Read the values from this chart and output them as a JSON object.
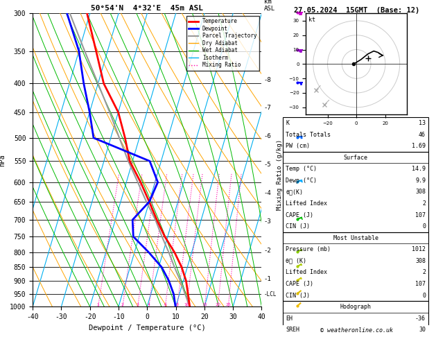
{
  "title_left": "50°54'N  4°32'E  45m ASL",
  "title_right": "27.05.2024  15GMT  (Base: 12)",
  "xlabel": "Dewpoint / Temperature (°C)",
  "pressure_levels": [
    300,
    350,
    400,
    450,
    500,
    550,
    600,
    650,
    700,
    750,
    800,
    850,
    900,
    950,
    1000
  ],
  "isotherm_color": "#00b0f0",
  "dry_adiabat_color": "#ffa500",
  "wet_adiabat_color": "#00bb00",
  "mixing_ratio_color": "#ff00aa",
  "temp_profile_color": "#ff0000",
  "dewp_profile_color": "#0000ff",
  "parcel_color": "#999999",
  "km_asl_ticks": [
    1,
    2,
    3,
    4,
    5,
    6,
    7,
    8
  ],
  "km_asl_pressures": [
    893,
    795,
    706,
    628,
    558,
    497,
    442,
    394
  ],
  "mixing_ratio_values": [
    1,
    2,
    3,
    4,
    6,
    8,
    10,
    15,
    20,
    25
  ],
  "legend_entries": [
    {
      "label": "Temperature",
      "color": "#ff0000",
      "style": "solid",
      "lw": 2
    },
    {
      "label": "Dewpoint",
      "color": "#0000ff",
      "style": "solid",
      "lw": 2
    },
    {
      "label": "Parcel Trajectory",
      "color": "#999999",
      "style": "solid",
      "lw": 1.5
    },
    {
      "label": "Dry Adiabat",
      "color": "#ffa500",
      "style": "solid",
      "lw": 1
    },
    {
      "label": "Wet Adiabat",
      "color": "#00bb00",
      "style": "solid",
      "lw": 1
    },
    {
      "label": "Isotherm",
      "color": "#00b0f0",
      "style": "solid",
      "lw": 1
    },
    {
      "label": "Mixing Ratio",
      "color": "#ff00aa",
      "style": "dotted",
      "lw": 1
    }
  ],
  "copyright": "© weatheronline.co.uk",
  "temp_data": {
    "pressure": [
      1000,
      950,
      900,
      850,
      800,
      750,
      700,
      650,
      600,
      550,
      500,
      450,
      400,
      350,
      300
    ],
    "temperature": [
      14.9,
      13.0,
      11.0,
      8.0,
      4.0,
      -1.0,
      -5.5,
      -10.0,
      -15.0,
      -21.0,
      -25.0,
      -30.0,
      -38.0,
      -44.0,
      -51.0
    ]
  },
  "dewp_data": {
    "pressure": [
      1000,
      950,
      900,
      850,
      800,
      750,
      700,
      650,
      600,
      550,
      500,
      450,
      400,
      350,
      300
    ],
    "dewpoint": [
      9.9,
      8.0,
      5.0,
      1.0,
      -5.0,
      -12.0,
      -14.0,
      -10.0,
      -9.0,
      -14.0,
      -36.0,
      -40.0,
      -45.0,
      -50.0,
      -58.0
    ]
  },
  "parcel_data": {
    "pressure": [
      1000,
      950,
      900,
      850,
      800,
      750,
      700,
      650,
      600,
      550,
      500,
      450,
      400,
      350,
      300
    ],
    "temperature": [
      14.9,
      12.0,
      9.0,
      5.5,
      2.0,
      -2.0,
      -6.0,
      -11.0,
      -16.0,
      -21.5,
      -27.0,
      -33.0,
      -40.0,
      -48.0,
      -57.0
    ]
  },
  "wind_barb_data": [
    {
      "pressure": 300,
      "color": "#cc00cc",
      "speed": 40,
      "dir": 270
    },
    {
      "pressure": 350,
      "color": "#9900cc",
      "speed": 35,
      "dir": 270
    },
    {
      "pressure": 400,
      "color": "#0000ff",
      "speed": 25,
      "dir": 270
    },
    {
      "pressure": 500,
      "color": "#0066ff",
      "speed": 20,
      "dir": 260
    },
    {
      "pressure": 600,
      "color": "#00aaff",
      "speed": 15,
      "dir": 250
    },
    {
      "pressure": 700,
      "color": "#00bb00",
      "speed": 12,
      "dir": 245
    },
    {
      "pressure": 800,
      "color": "#88cc00",
      "speed": 8,
      "dir": 240
    },
    {
      "pressure": 850,
      "color": "#aacc00",
      "speed": 6,
      "dir": 235
    },
    {
      "pressure": 900,
      "color": "#cccc00",
      "speed": 5,
      "dir": 230
    },
    {
      "pressure": 950,
      "color": "#ddbb00",
      "speed": 4,
      "dir": 225
    },
    {
      "pressure": 1000,
      "color": "#eebb00",
      "speed": 3,
      "dir": 220
    }
  ],
  "hodo_trace_u": [
    -2,
    3,
    8,
    12,
    15,
    18
  ],
  "hodo_trace_v": [
    0,
    3,
    7,
    9,
    8,
    6
  ],
  "hodo_storm_u": 8,
  "hodo_storm_v": 4
}
